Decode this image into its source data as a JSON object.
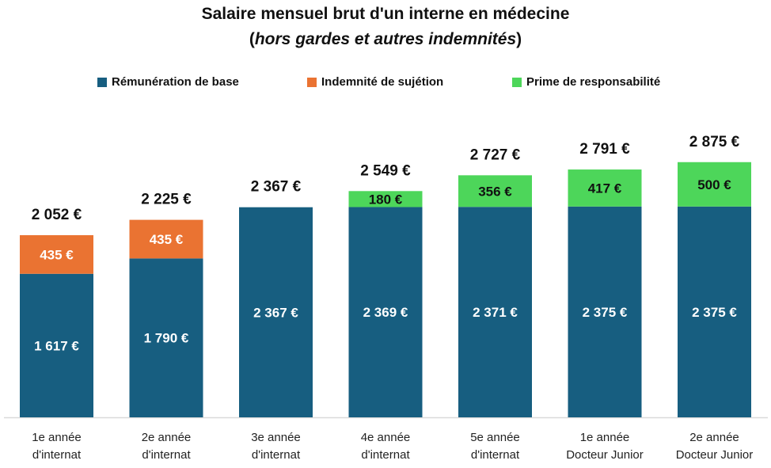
{
  "chart_data": {
    "type": "bar",
    "stacked": true,
    "title": "Salaire mensuel brut d'un interne en médecine",
    "subtitle_open": "(",
    "subtitle_italic": "hors gardes et autres indemnités",
    "subtitle_close": ")",
    "legend_position": "top",
    "grid": false,
    "categories": [
      [
        "1e année",
        "d'internat"
      ],
      [
        "2e année",
        "d'internat"
      ],
      [
        "3e année",
        "d'internat"
      ],
      [
        "4e année",
        "d'internat"
      ],
      [
        "5e année",
        "d'internat"
      ],
      [
        "1e année",
        "Docteur Junior"
      ],
      [
        "2e année",
        "Docteur Junior"
      ]
    ],
    "series": [
      {
        "name": "Rémunération de base",
        "color": "#175e80",
        "values": [
          1617,
          1790,
          2367,
          2369,
          2371,
          2375,
          2375
        ],
        "labels": [
          "1 617 €",
          "1 790 €",
          "2 367 €",
          "2 369 €",
          "2 371 €",
          "2 375 €",
          "2 375 €"
        ]
      },
      {
        "name": "Indemnité de sujétion",
        "color": "#ea7332",
        "values": [
          435,
          435,
          0,
          0,
          0,
          0,
          0
        ],
        "labels": [
          "435 €",
          "435 €",
          "",
          "",
          "",
          "",
          ""
        ]
      },
      {
        "name": "Prime de responsabilité",
        "color": "#4dd65a",
        "values": [
          0,
          0,
          0,
          180,
          356,
          417,
          500
        ],
        "labels": [
          "",
          "",
          "",
          "180 €",
          "356 €",
          "417 €",
          "500 €"
        ]
      }
    ],
    "totals": [
      2052,
      2225,
      2367,
      2549,
      2727,
      2791,
      2875
    ],
    "total_labels": [
      "2 052 €",
      "2 225 €",
      "2 367 €",
      "2 549 €",
      "2 727 €",
      "2 791 €",
      "2 875 €"
    ]
  }
}
